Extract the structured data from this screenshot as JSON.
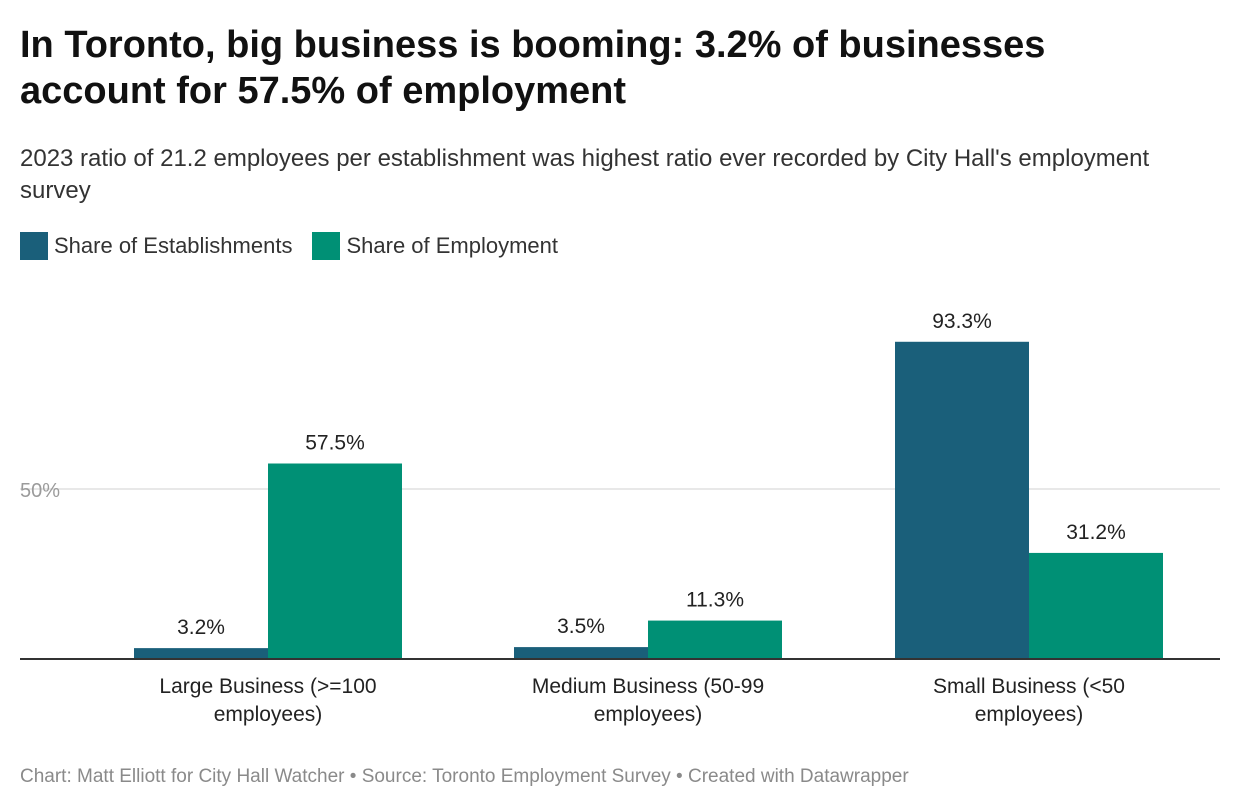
{
  "title": "In Toronto, big business is booming: 3.2% of businesses account for 57.5% of employment",
  "subtitle": "2023 ratio of 21.2 employees per establishment was highest ratio ever recorded by City Hall's employment survey",
  "footer": "Chart: Matt Elliott for City Hall Watcher • Source: Toronto Employment Survey • Created with Datawrapper",
  "colors": {
    "establishments": "#1a5f7a",
    "employment": "#009075",
    "grid": "#e0e0e0",
    "axis": "#333333",
    "tick": "#9b9b9b"
  },
  "chart_data": {
    "type": "bar",
    "categories": [
      [
        "Large Business (>=100",
        "employees)"
      ],
      [
        "Medium Business (50-99",
        "employees)"
      ],
      [
        "Small Business (<50",
        "employees)"
      ]
    ],
    "series": [
      {
        "name": "Share of Establishments",
        "values": [
          3.2,
          3.5,
          93.3
        ],
        "labels": [
          "3.2%",
          "3.5%",
          "93.3%"
        ]
      },
      {
        "name": "Share of Employment",
        "values": [
          57.5,
          11.3,
          31.2
        ],
        "labels": [
          "57.5%",
          "11.3%",
          "31.2%"
        ]
      }
    ],
    "y_ticks": [
      {
        "value": 50,
        "label": "50%"
      }
    ],
    "ylim": [
      0,
      100
    ],
    "grid": true,
    "legend": "top-left"
  }
}
